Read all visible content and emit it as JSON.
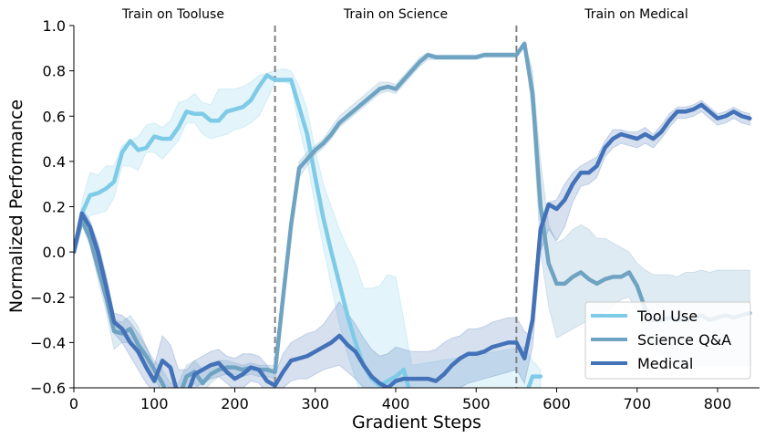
{
  "chart_data": {
    "type": "line",
    "title": "",
    "xlabel": "Gradient Steps",
    "ylabel": "Normalized Performance",
    "xlim": [
      0,
      850
    ],
    "ylim": [
      -0.6,
      1.0
    ],
    "xticks": [
      0,
      100,
      200,
      300,
      400,
      500,
      600,
      700,
      800
    ],
    "yticks": [
      -0.6,
      -0.4,
      -0.2,
      0.0,
      0.2,
      0.4,
      0.6,
      0.8,
      1.0
    ],
    "ytick_labels": [
      "−0.6",
      "−0.4",
      "−0.2",
      "0.0",
      "0.2",
      "0.4",
      "0.6",
      "0.8",
      "1.0"
    ],
    "grid": false,
    "legend_position": "lower right",
    "phase_boundaries": [
      250,
      550
    ],
    "phase_labels": [
      {
        "text": "Train on Tooluse",
        "x": 125
      },
      {
        "text": "Train on Science",
        "x": 400
      },
      {
        "text": "Train on Medical",
        "x": 700
      }
    ],
    "series": [
      {
        "name": "Tool Use",
        "color": "#7ecbe8",
        "x": [
          0,
          10,
          20,
          30,
          40,
          50,
          60,
          70,
          80,
          90,
          100,
          110,
          120,
          130,
          140,
          150,
          160,
          170,
          180,
          190,
          200,
          210,
          220,
          230,
          240,
          250,
          260,
          270,
          280,
          290,
          300,
          310,
          320,
          330,
          340,
          350,
          360,
          370,
          380,
          390,
          400,
          410,
          420,
          560,
          570,
          580
        ],
        "values": [
          0.0,
          0.17,
          0.25,
          0.26,
          0.28,
          0.31,
          0.44,
          0.49,
          0.45,
          0.46,
          0.51,
          0.5,
          0.5,
          0.55,
          0.62,
          0.61,
          0.61,
          0.58,
          0.58,
          0.62,
          0.63,
          0.64,
          0.67,
          0.73,
          0.78,
          0.76,
          0.76,
          0.76,
          0.64,
          0.52,
          0.33,
          0.15,
          0.0,
          -0.14,
          -0.28,
          -0.4,
          -0.5,
          -0.56,
          -0.59,
          -0.57,
          -0.55,
          -0.52,
          -0.65,
          -0.65,
          -0.55,
          -0.55
        ],
        "band_upper": [
          0.0,
          0.22,
          0.35,
          0.34,
          0.38,
          0.38,
          0.47,
          0.49,
          0.51,
          0.56,
          0.57,
          0.55,
          0.58,
          0.66,
          0.67,
          0.7,
          0.66,
          0.65,
          0.72,
          0.72,
          0.72,
          0.73,
          0.75,
          0.78,
          0.79,
          0.8,
          0.81,
          0.8,
          0.73,
          0.63,
          0.45,
          0.3,
          0.2,
          0.1,
          0.02,
          -0.05,
          -0.16,
          -0.16,
          -0.15,
          -0.1,
          -0.11,
          -0.3,
          -0.5,
          -0.42,
          -0.48,
          -0.52
        ],
        "band_lower": [
          0.0,
          0.12,
          0.16,
          0.17,
          0.18,
          0.24,
          0.38,
          0.38,
          0.36,
          0.44,
          0.44,
          0.41,
          0.45,
          0.49,
          0.57,
          0.57,
          0.52,
          0.5,
          0.51,
          0.52,
          0.54,
          0.55,
          0.57,
          0.6,
          0.67,
          0.75,
          0.75,
          0.74,
          0.55,
          0.4,
          0.2,
          0.02,
          -0.15,
          -0.32,
          -0.45,
          -0.56,
          -0.66,
          -0.66,
          -0.66,
          -0.66,
          -0.66,
          -0.66,
          -0.66,
          -0.66,
          -0.66,
          -0.66
        ]
      },
      {
        "name": "Science Q&A",
        "color": "#6fa3c2",
        "x": [
          0,
          10,
          20,
          30,
          40,
          50,
          60,
          70,
          80,
          90,
          100,
          110,
          120,
          130,
          140,
          150,
          160,
          170,
          180,
          190,
          200,
          210,
          220,
          230,
          240,
          250,
          260,
          270,
          280,
          290,
          300,
          310,
          320,
          330,
          340,
          350,
          360,
          370,
          380,
          390,
          400,
          410,
          420,
          430,
          440,
          450,
          460,
          470,
          480,
          490,
          500,
          510,
          520,
          530,
          540,
          550,
          560,
          570,
          580,
          590,
          600,
          610,
          620,
          630,
          640,
          650,
          660,
          670,
          680,
          690,
          700,
          710,
          720,
          730,
          740,
          750,
          760,
          770,
          780,
          790,
          800,
          810,
          820,
          830,
          840
        ],
        "values": [
          0.0,
          0.14,
          0.06,
          -0.07,
          -0.2,
          -0.35,
          -0.36,
          -0.34,
          -0.41,
          -0.46,
          -0.52,
          -0.58,
          -0.66,
          -0.65,
          -0.55,
          -0.53,
          -0.58,
          -0.54,
          -0.52,
          -0.51,
          -0.51,
          -0.52,
          -0.51,
          -0.52,
          -0.52,
          -0.53,
          -0.2,
          0.12,
          0.37,
          0.41,
          0.45,
          0.48,
          0.52,
          0.57,
          0.6,
          0.63,
          0.66,
          0.69,
          0.72,
          0.73,
          0.72,
          0.76,
          0.8,
          0.84,
          0.87,
          0.86,
          0.86,
          0.86,
          0.86,
          0.86,
          0.86,
          0.87,
          0.87,
          0.87,
          0.87,
          0.87,
          0.92,
          0.7,
          0.2,
          -0.05,
          -0.14,
          -0.14,
          -0.11,
          -0.09,
          -0.12,
          -0.14,
          -0.12,
          -0.11,
          -0.11,
          -0.09,
          -0.15,
          -0.25,
          -0.3,
          -0.3,
          -0.29,
          -0.3,
          -0.3,
          -0.29,
          -0.28,
          -0.3,
          -0.29,
          -0.28,
          -0.29,
          -0.28,
          -0.27
        ],
        "band_upper": [
          0.0,
          0.16,
          0.1,
          -0.02,
          -0.14,
          -0.3,
          -0.31,
          -0.28,
          -0.33,
          -0.42,
          -0.48,
          -0.52,
          -0.58,
          -0.58,
          -0.5,
          -0.48,
          -0.52,
          -0.5,
          -0.48,
          -0.48,
          -0.49,
          -0.5,
          -0.49,
          -0.5,
          -0.5,
          -0.5,
          -0.18,
          0.15,
          0.4,
          0.44,
          0.47,
          0.5,
          0.55,
          0.6,
          0.63,
          0.66,
          0.69,
          0.72,
          0.75,
          0.75,
          0.74,
          0.78,
          0.82,
          0.86,
          0.88,
          0.87,
          0.87,
          0.87,
          0.87,
          0.87,
          0.87,
          0.88,
          0.88,
          0.88,
          0.88,
          0.88,
          0.93,
          0.8,
          0.4,
          0.12,
          0.04,
          0.06,
          0.1,
          0.12,
          0.1,
          0.06,
          0.06,
          0.04,
          0.02,
          0.0,
          -0.05,
          -0.08,
          -0.1,
          -0.1,
          -0.1,
          -0.11,
          -0.09,
          -0.09,
          -0.08,
          -0.09,
          -0.08,
          -0.08,
          -0.08,
          -0.08,
          -0.08
        ],
        "band_lower": [
          0.0,
          0.12,
          0.03,
          -0.12,
          -0.26,
          -0.43,
          -0.4,
          -0.4,
          -0.46,
          -0.52,
          -0.56,
          -0.62,
          -0.66,
          -0.66,
          -0.62,
          -0.58,
          -0.62,
          -0.58,
          -0.55,
          -0.54,
          -0.54,
          -0.55,
          -0.54,
          -0.55,
          -0.55,
          -0.56,
          -0.22,
          0.1,
          0.33,
          0.38,
          0.43,
          0.46,
          0.5,
          0.55,
          0.58,
          0.61,
          0.64,
          0.67,
          0.7,
          0.71,
          0.7,
          0.74,
          0.78,
          0.82,
          0.85,
          0.85,
          0.85,
          0.85,
          0.85,
          0.85,
          0.85,
          0.86,
          0.86,
          0.86,
          0.86,
          0.86,
          0.91,
          0.6,
          0.0,
          -0.24,
          -0.38,
          -0.36,
          -0.34,
          -0.32,
          -0.3,
          -0.3,
          -0.27,
          -0.24,
          -0.21,
          -0.2,
          -0.26,
          -0.35,
          -0.42,
          -0.45,
          -0.48,
          -0.5,
          -0.5,
          -0.5,
          -0.5,
          -0.5,
          -0.5,
          -0.5,
          -0.5,
          -0.5,
          -0.5
        ]
      },
      {
        "name": "Medical",
        "color": "#4472b8",
        "x": [
          0,
          10,
          20,
          30,
          40,
          50,
          60,
          70,
          80,
          90,
          100,
          110,
          120,
          130,
          140,
          150,
          160,
          170,
          180,
          190,
          200,
          210,
          220,
          230,
          240,
          250,
          260,
          270,
          280,
          290,
          300,
          310,
          320,
          330,
          340,
          350,
          360,
          370,
          380,
          390,
          400,
          410,
          420,
          430,
          440,
          450,
          460,
          470,
          480,
          490,
          500,
          510,
          520,
          530,
          540,
          550,
          560,
          570,
          580,
          590,
          600,
          610,
          620,
          630,
          640,
          650,
          660,
          670,
          680,
          690,
          700,
          710,
          720,
          730,
          740,
          750,
          760,
          770,
          780,
          790,
          800,
          810,
          820,
          830,
          840
        ],
        "values": [
          0.0,
          0.17,
          0.11,
          0.0,
          -0.15,
          -0.31,
          -0.34,
          -0.4,
          -0.44,
          -0.51,
          -0.57,
          -0.48,
          -0.51,
          -0.64,
          -0.64,
          -0.54,
          -0.52,
          -0.5,
          -0.49,
          -0.53,
          -0.56,
          -0.54,
          -0.51,
          -0.52,
          -0.57,
          -0.59,
          -0.53,
          -0.48,
          -0.47,
          -0.46,
          -0.44,
          -0.42,
          -0.4,
          -0.37,
          -0.41,
          -0.44,
          -0.5,
          -0.55,
          -0.58,
          -0.6,
          -0.57,
          -0.56,
          -0.56,
          -0.56,
          -0.56,
          -0.57,
          -0.54,
          -0.5,
          -0.47,
          -0.45,
          -0.45,
          -0.44,
          -0.42,
          -0.41,
          -0.4,
          -0.4,
          -0.47,
          -0.3,
          0.1,
          0.21,
          0.19,
          0.23,
          0.3,
          0.35,
          0.35,
          0.38,
          0.46,
          0.5,
          0.52,
          0.51,
          0.5,
          0.52,
          0.5,
          0.53,
          0.58,
          0.62,
          0.62,
          0.63,
          0.65,
          0.62,
          0.59,
          0.6,
          0.62,
          0.6,
          0.59
        ],
        "band_upper": [
          0.0,
          0.19,
          0.14,
          0.04,
          -0.1,
          -0.27,
          -0.28,
          -0.31,
          -0.36,
          -0.42,
          -0.5,
          -0.37,
          -0.41,
          -0.52,
          -0.52,
          -0.48,
          -0.46,
          -0.44,
          -0.43,
          -0.46,
          -0.47,
          -0.45,
          -0.45,
          -0.46,
          -0.5,
          -0.54,
          -0.45,
          -0.4,
          -0.38,
          -0.36,
          -0.35,
          -0.32,
          -0.27,
          -0.22,
          -0.27,
          -0.32,
          -0.38,
          -0.43,
          -0.46,
          -0.45,
          -0.42,
          -0.43,
          -0.44,
          -0.44,
          -0.44,
          -0.43,
          -0.4,
          -0.38,
          -0.37,
          -0.34,
          -0.34,
          -0.33,
          -0.31,
          -0.3,
          -0.29,
          -0.29,
          -0.35,
          -0.38,
          0.0,
          0.22,
          0.23,
          0.3,
          0.35,
          0.38,
          0.4,
          0.42,
          0.49,
          0.54,
          0.54,
          0.53,
          0.53,
          0.55,
          0.52,
          0.56,
          0.61,
          0.64,
          0.64,
          0.65,
          0.67,
          0.64,
          0.61,
          0.62,
          0.64,
          0.62,
          0.61
        ],
        "band_lower": [
          0.0,
          0.15,
          0.08,
          -0.04,
          -0.2,
          -0.36,
          -0.4,
          -0.46,
          -0.52,
          -0.58,
          -0.62,
          -0.58,
          -0.6,
          -0.66,
          -0.66,
          -0.6,
          -0.58,
          -0.56,
          -0.55,
          -0.58,
          -0.61,
          -0.6,
          -0.57,
          -0.58,
          -0.62,
          -0.64,
          -0.6,
          -0.57,
          -0.56,
          -0.56,
          -0.54,
          -0.52,
          -0.51,
          -0.5,
          -0.53,
          -0.56,
          -0.6,
          -0.63,
          -0.65,
          -0.66,
          -0.66,
          -0.66,
          -0.66,
          -0.66,
          -0.66,
          -0.66,
          -0.66,
          -0.63,
          -0.6,
          -0.58,
          -0.57,
          -0.56,
          -0.55,
          -0.54,
          -0.53,
          -0.52,
          -0.58,
          -0.42,
          0.0,
          0.1,
          0.05,
          0.11,
          0.22,
          0.29,
          0.3,
          0.33,
          0.42,
          0.46,
          0.48,
          0.47,
          0.46,
          0.48,
          0.46,
          0.5,
          0.55,
          0.59,
          0.59,
          0.6,
          0.62,
          0.59,
          0.56,
          0.57,
          0.59,
          0.57,
          0.56
        ]
      }
    ]
  },
  "legend": {
    "items": [
      {
        "label": "Tool Use",
        "color": "#7ecbe8"
      },
      {
        "label": "Science Q&A",
        "color": "#6fa3c2"
      },
      {
        "label": "Medical",
        "color": "#4472b8"
      }
    ]
  }
}
